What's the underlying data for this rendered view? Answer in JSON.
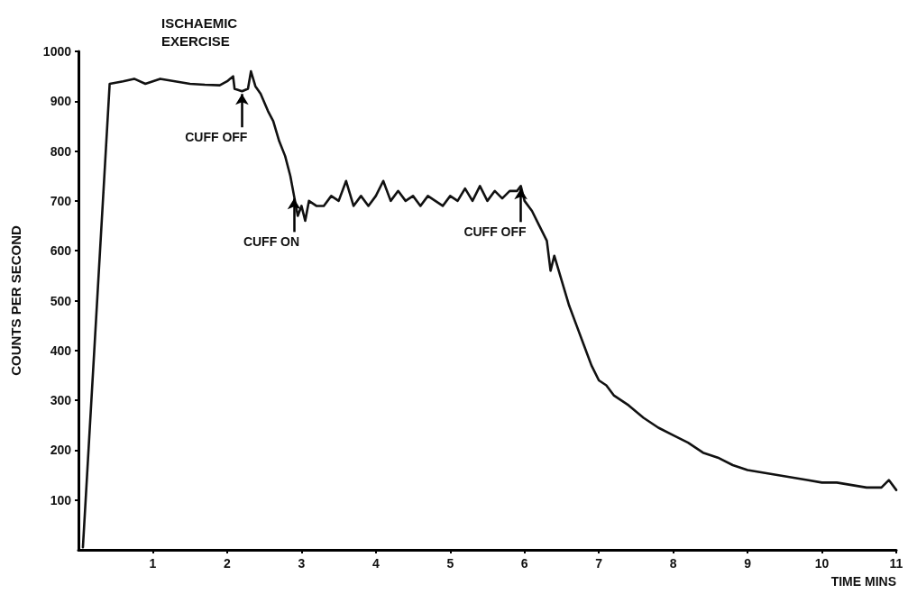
{
  "chart_data": {
    "type": "line",
    "title": "ISCHAEMIC EXERCISE",
    "xlabel": "TIME MINS",
    "ylabel": "COUNTS PER SECOND",
    "xlim": [
      0,
      11
    ],
    "xticks": [
      1,
      2,
      3,
      4,
      5,
      6,
      7,
      8,
      9,
      10,
      11
    ],
    "ylim": [
      0,
      1000
    ],
    "yticks": [
      100,
      200,
      300,
      400,
      500,
      600,
      700,
      800,
      900,
      1000
    ],
    "grid": false,
    "marker": "none",
    "line_style": "solid",
    "annotations": [
      {
        "text": "CUFF OFF",
        "x": 2.2,
        "y": 920
      },
      {
        "text": "CUFF ON",
        "x": 2.9,
        "y": 710
      },
      {
        "text": "CUFF OFF",
        "x": 5.95,
        "y": 730
      }
    ],
    "series": [
      {
        "color": "#111111",
        "x": [
          0.06,
          0.42,
          0.6,
          0.75,
          0.9,
          1.1,
          1.3,
          1.5,
          1.7,
          1.9,
          2.0,
          2.08,
          2.1,
          2.2,
          2.28,
          2.32,
          2.38,
          2.45,
          2.55,
          2.62,
          2.7,
          2.78,
          2.85,
          2.9,
          2.95,
          3.0,
          3.05,
          3.1,
          3.2,
          3.3,
          3.4,
          3.5,
          3.6,
          3.7,
          3.8,
          3.9,
          4.0,
          4.1,
          4.2,
          4.3,
          4.4,
          4.5,
          4.6,
          4.7,
          4.8,
          4.9,
          5.0,
          5.1,
          5.2,
          5.3,
          5.4,
          5.5,
          5.6,
          5.7,
          5.8,
          5.9,
          5.95,
          6.0,
          6.1,
          6.2,
          6.3,
          6.35,
          6.4,
          6.5,
          6.6,
          6.7,
          6.8,
          6.9,
          7.0,
          7.1,
          7.2,
          7.4,
          7.6,
          7.8,
          8.0,
          8.2,
          8.4,
          8.6,
          8.8,
          9.0,
          9.2,
          9.4,
          9.6,
          9.8,
          10.0,
          10.2,
          10.4,
          10.6,
          10.8,
          10.9,
          11.0
        ],
        "values": [
          5,
          935,
          940,
          945,
          935,
          945,
          940,
          935,
          933,
          932,
          940,
          950,
          925,
          920,
          925,
          960,
          930,
          915,
          880,
          860,
          820,
          790,
          750,
          710,
          670,
          690,
          660,
          700,
          690,
          690,
          710,
          700,
          740,
          690,
          710,
          690,
          710,
          740,
          700,
          720,
          700,
          710,
          690,
          710,
          700,
          690,
          710,
          700,
          725,
          700,
          730,
          700,
          720,
          705,
          720,
          720,
          730,
          700,
          680,
          650,
          620,
          560,
          590,
          540,
          490,
          450,
          410,
          370,
          340,
          330,
          310,
          290,
          265,
          245,
          230,
          215,
          195,
          185,
          170,
          160,
          155,
          150,
          145,
          140,
          135,
          135,
          130,
          125,
          125,
          140,
          120
        ]
      }
    ]
  }
}
